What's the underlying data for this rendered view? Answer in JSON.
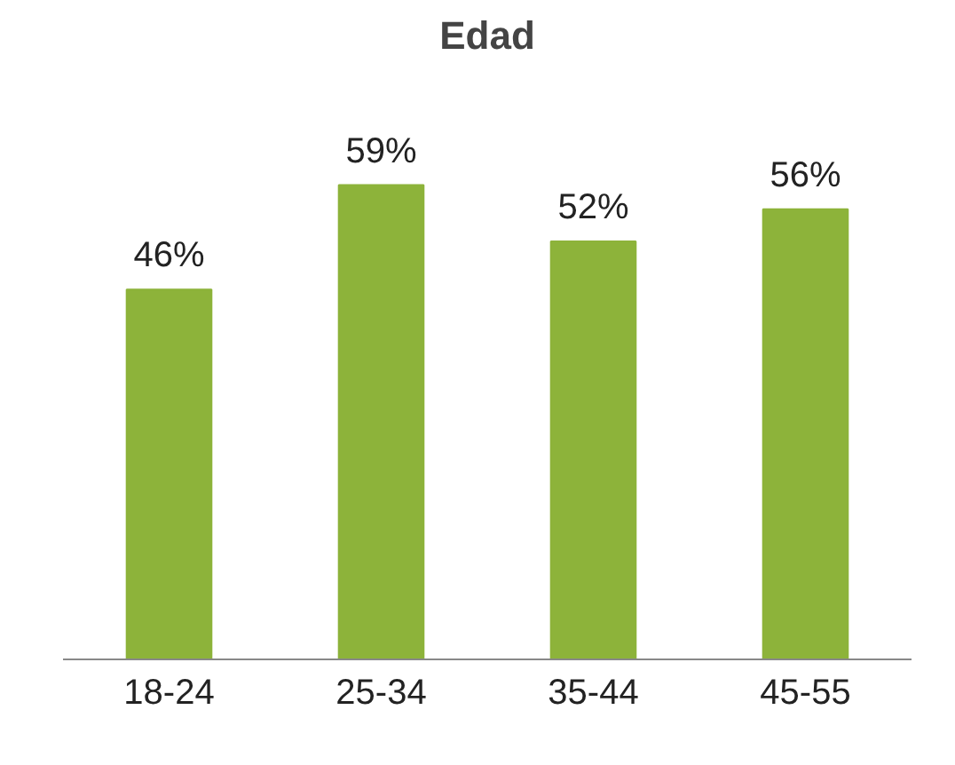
{
  "chart_data": {
    "type": "bar",
    "title": "Edad",
    "categories": [
      "18-24",
      "25-34",
      "35-44",
      "45-55"
    ],
    "values": [
      46,
      59,
      52,
      56
    ],
    "value_labels": [
      "46%",
      "59%",
      "52%",
      "56%"
    ],
    "color": "#8db33a"
  }
}
